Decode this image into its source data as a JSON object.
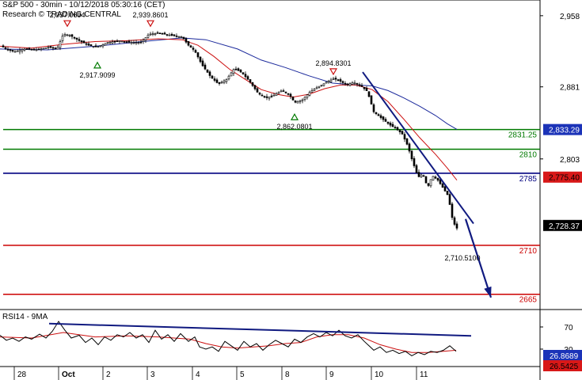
{
  "header": {
    "title": "S&P 500 - 30min - 10/12/2018 05:30:16 (CET)",
    "source": "Research © TRADING CENTRAL"
  },
  "chart_data": {
    "type": "candlestick",
    "title": "S&P 500 - 30min - 10/12/2018 05:30:16 (CET)",
    "ylim": [
      2640,
      2975
    ],
    "y_ticks": [
      "2,958",
      "2,881",
      "2,803"
    ],
    "x_ticks": [
      "28",
      "Oct",
      "2",
      "3",
      "4",
      "5",
      "8",
      "9",
      "10",
      "11"
    ],
    "price_path": [
      [
        0,
        2926
      ],
      [
        8,
        2922
      ],
      [
        18,
        2919
      ],
      [
        30,
        2922
      ],
      [
        45,
        2921
      ],
      [
        62,
        2924
      ],
      [
        72,
        2922
      ],
      [
        80,
        2938
      ],
      [
        88,
        2937
      ],
      [
        100,
        2931
      ],
      [
        112,
        2926
      ],
      [
        122,
        2924
      ],
      [
        136,
        2929
      ],
      [
        150,
        2931
      ],
      [
        165,
        2929
      ],
      [
        178,
        2929
      ],
      [
        188,
        2938
      ],
      [
        200,
        2939
      ],
      [
        215,
        2937
      ],
      [
        230,
        2935
      ],
      [
        238,
        2926
      ],
      [
        246,
        2920
      ],
      [
        255,
        2905
      ],
      [
        266,
        2892
      ],
      [
        276,
        2884
      ],
      [
        286,
        2889
      ],
      [
        296,
        2901
      ],
      [
        306,
        2896
      ],
      [
        316,
        2886
      ],
      [
        326,
        2874
      ],
      [
        336,
        2869
      ],
      [
        346,
        2872
      ],
      [
        356,
        2877
      ],
      [
        366,
        2872
      ],
      [
        372,
        2864
      ],
      [
        382,
        2867
      ],
      [
        392,
        2876
      ],
      [
        402,
        2881
      ],
      [
        412,
        2886
      ],
      [
        422,
        2890
      ],
      [
        430,
        2887
      ],
      [
        438,
        2883
      ],
      [
        446,
        2886
      ],
      [
        456,
        2882
      ],
      [
        464,
        2876
      ],
      [
        472,
        2854
      ],
      [
        482,
        2847
      ],
      [
        492,
        2840
      ],
      [
        500,
        2836
      ],
      [
        508,
        2830
      ],
      [
        515,
        2817
      ],
      [
        520,
        2803
      ],
      [
        528,
        2783
      ],
      [
        534,
        2787
      ],
      [
        540,
        2772
      ],
      [
        546,
        2785
      ],
      [
        553,
        2780
      ],
      [
        560,
        2771
      ],
      [
        566,
        2763
      ],
      [
        572,
        2735
      ],
      [
        577,
        2728
      ]
    ],
    "moving_average_fast": [
      [
        0,
        2925
      ],
      [
        40,
        2923
      ],
      [
        80,
        2927
      ],
      [
        120,
        2930
      ],
      [
        160,
        2931
      ],
      [
        200,
        2933
      ],
      [
        230,
        2932
      ],
      [
        250,
        2926
      ],
      [
        270,
        2914
      ],
      [
        290,
        2900
      ],
      [
        310,
        2889
      ],
      [
        330,
        2878
      ],
      [
        350,
        2873
      ],
      [
        370,
        2870
      ],
      [
        390,
        2873
      ],
      [
        410,
        2879
      ],
      [
        430,
        2883
      ],
      [
        450,
        2883
      ],
      [
        470,
        2878
      ],
      [
        490,
        2865
      ],
      [
        510,
        2846
      ],
      [
        530,
        2826
      ],
      [
        550,
        2808
      ],
      [
        565,
        2793
      ],
      [
        577,
        2780
      ]
    ],
    "moving_average_slow": [
      [
        0,
        2922
      ],
      [
        60,
        2921
      ],
      [
        120,
        2925
      ],
      [
        180,
        2930
      ],
      [
        230,
        2934
      ],
      [
        260,
        2932
      ],
      [
        300,
        2922
      ],
      [
        330,
        2910
      ],
      [
        360,
        2902
      ],
      [
        390,
        2893
      ],
      [
        420,
        2885
      ],
      [
        450,
        2883
      ],
      [
        470,
        2882
      ],
      [
        490,
        2877
      ],
      [
        510,
        2869
      ],
      [
        530,
        2860
      ],
      [
        550,
        2850
      ],
      [
        565,
        2841
      ],
      [
        577,
        2835
      ]
    ],
    "horizontal_levels": [
      {
        "label": "2831.25",
        "value": 2834.8,
        "color": "#007a00"
      },
      {
        "label": "2810",
        "value": 2813.5,
        "color": "#007a00"
      },
      {
        "label": "2785",
        "value": 2787.5,
        "color": "#000080"
      },
      {
        "label": "2710",
        "value": 2709.5,
        "color": "#cc0000"
      },
      {
        "label": "2665",
        "value": 2656.5,
        "color": "#cc0000"
      }
    ],
    "price_tags": [
      {
        "label": "2,833.29",
        "value": 2834.8,
        "bg": "#1b33b8",
        "fg": "#ffffff"
      },
      {
        "label": "2,775.40",
        "value": 2783.3,
        "bg": "#d81818",
        "fg": "#000000"
      },
      {
        "label": "2,728.37",
        "value": 2731.0,
        "bg": "#000000",
        "fg": "#ffffff"
      }
    ],
    "extremes": [
      {
        "label": "2,937.0694",
        "x": 85,
        "value": 2956,
        "marker": "down"
      },
      {
        "label": "2,939.8601",
        "x": 190,
        "value": 2956,
        "marker": "down"
      },
      {
        "label": "2,917.9099",
        "x": 123,
        "value": 2898,
        "marker": "up"
      },
      {
        "label": "2,894.8301",
        "x": 421,
        "value": 2904,
        "marker": "down"
      },
      {
        "label": "2,862.0801",
        "x": 372,
        "value": 2842,
        "marker": "up"
      },
      {
        "label": "2,710.5100",
        "x": 584,
        "value": 2693,
        "marker": "none"
      }
    ],
    "trendline": {
      "from": [
        458,
        2897
      ],
      "to": [
        598,
        2733
      ]
    },
    "projection_arrow": {
      "from": [
        588,
        2738
      ],
      "to": [
        620,
        2653
      ]
    },
    "rsi": {
      "label": "RSI14 - 9MA",
      "y_ticks": [
        "70",
        "30"
      ],
      "price_tags": [
        {
          "label": "26.8689",
          "bg": "#1b33b8",
          "fg": "#ffffff"
        },
        {
          "label": "26.5425",
          "bg": "#d81818",
          "fg": "#000000"
        }
      ],
      "rsi_path": [
        [
          0,
          55
        ],
        [
          8,
          46
        ],
        [
          16,
          50
        ],
        [
          24,
          44
        ],
        [
          32,
          52
        ],
        [
          40,
          48
        ],
        [
          50,
          57
        ],
        [
          58,
          50
        ],
        [
          66,
          62
        ],
        [
          74,
          80
        ],
        [
          82,
          64
        ],
        [
          90,
          50
        ],
        [
          100,
          55
        ],
        [
          108,
          42
        ],
        [
          116,
          50
        ],
        [
          124,
          38
        ],
        [
          132,
          52
        ],
        [
          140,
          46
        ],
        [
          148,
          56
        ],
        [
          156,
          52
        ],
        [
          164,
          60
        ],
        [
          172,
          50
        ],
        [
          180,
          56
        ],
        [
          188,
          42
        ],
        [
          196,
          64
        ],
        [
          204,
          48
        ],
        [
          212,
          56
        ],
        [
          220,
          44
        ],
        [
          228,
          58
        ],
        [
          238,
          44
        ],
        [
          246,
          52
        ],
        [
          252,
          34
        ],
        [
          260,
          30
        ],
        [
          268,
          34
        ],
        [
          276,
          26
        ],
        [
          284,
          44
        ],
        [
          292,
          36
        ],
        [
          300,
          28
        ],
        [
          308,
          44
        ],
        [
          316,
          34
        ],
        [
          324,
          40
        ],
        [
          332,
          28
        ],
        [
          340,
          38
        ],
        [
          348,
          46
        ],
        [
          356,
          40
        ],
        [
          364,
          34
        ],
        [
          372,
          48
        ],
        [
          380,
          42
        ],
        [
          388,
          52
        ],
        [
          396,
          58
        ],
        [
          404,
          52
        ],
        [
          412,
          60
        ],
        [
          420,
          54
        ],
        [
          428,
          64
        ],
        [
          436,
          54
        ],
        [
          444,
          50
        ],
        [
          452,
          56
        ],
        [
          460,
          44
        ],
        [
          466,
          36
        ],
        [
          472,
          28
        ],
        [
          480,
          34
        ],
        [
          488,
          24
        ],
        [
          496,
          28
        ],
        [
          504,
          22
        ],
        [
          512,
          26
        ],
        [
          520,
          18
        ],
        [
          528,
          24
        ],
        [
          536,
          20
        ],
        [
          544,
          26
        ],
        [
          552,
          24
        ],
        [
          560,
          28
        ],
        [
          568,
          36
        ],
        [
          576,
          26
        ]
      ],
      "ma_path": [
        [
          0,
          52
        ],
        [
          40,
          50
        ],
        [
          80,
          60
        ],
        [
          120,
          52
        ],
        [
          160,
          54
        ],
        [
          200,
          52
        ],
        [
          240,
          48
        ],
        [
          260,
          40
        ],
        [
          280,
          34
        ],
        [
          300,
          32
        ],
        [
          320,
          34
        ],
        [
          340,
          36
        ],
        [
          360,
          40
        ],
        [
          380,
          42
        ],
        [
          400,
          52
        ],
        [
          420,
          56
        ],
        [
          440,
          56
        ],
        [
          460,
          50
        ],
        [
          480,
          38
        ],
        [
          500,
          30
        ],
        [
          520,
          24
        ],
        [
          540,
          24
        ],
        [
          560,
          26
        ],
        [
          576,
          28
        ]
      ],
      "trendline": {
        "from": [
          62,
          76
        ],
        "to": [
          595,
          54
        ]
      }
    }
  }
}
